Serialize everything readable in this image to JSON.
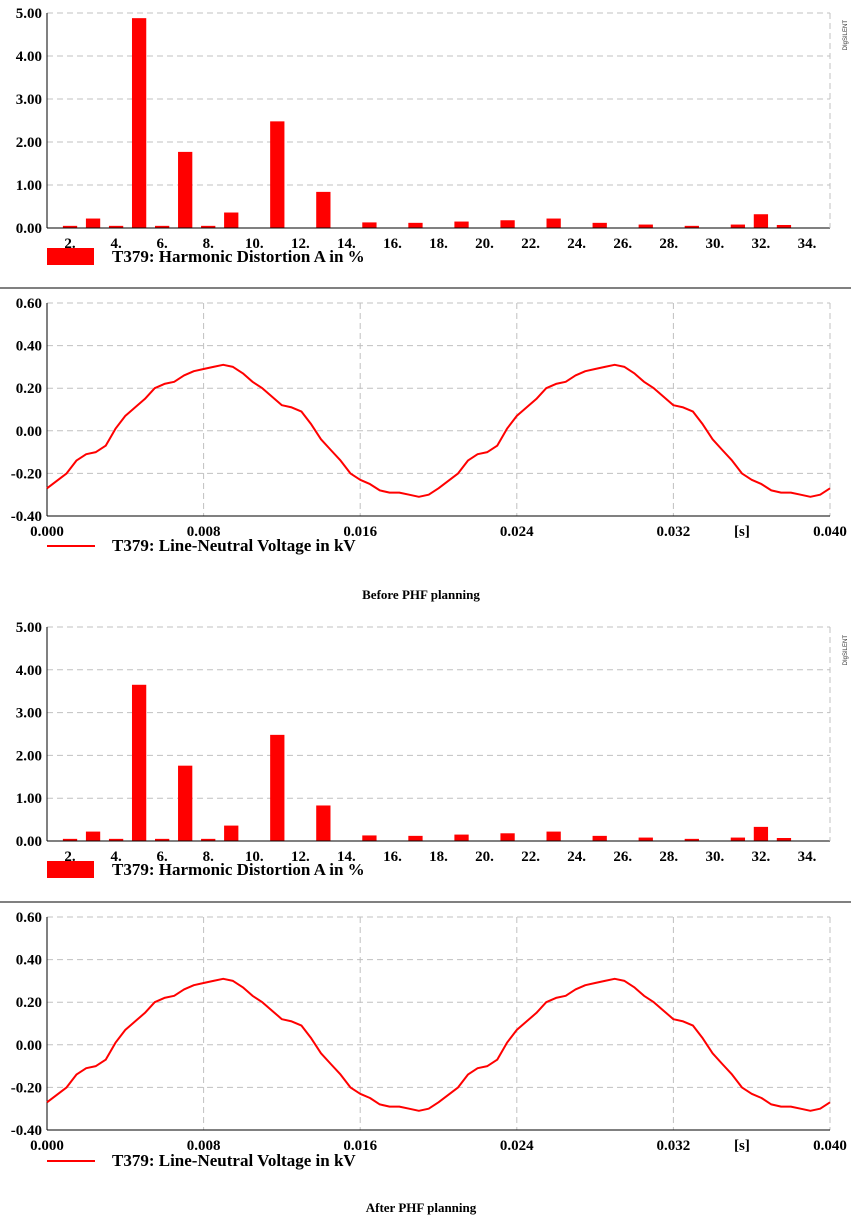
{
  "panels": [
    {
      "caption": "Before PHF planning",
      "watermark": "DIgSILENT",
      "bar_chart": {
        "type": "bar",
        "legend": "T379: Harmonic Distortion A in %",
        "color": "#ff0000",
        "ylim": [
          0,
          5
        ],
        "yticks": [
          "0.00",
          "1.00",
          "2.00",
          "3.00",
          "4.00",
          "5.00"
        ],
        "xticks": [
          "2.",
          "4.",
          "6.",
          "8.",
          "10.",
          "12.",
          "14.",
          "16.",
          "18.",
          "20.",
          "22.",
          "24.",
          "26.",
          "28.",
          "30.",
          "32.",
          "34."
        ],
        "categories": [
          2,
          3,
          4,
          5,
          6,
          7,
          8,
          9,
          10,
          11,
          12,
          13,
          14,
          15,
          16,
          17,
          18,
          19,
          20,
          21,
          22,
          23,
          24,
          25,
          26,
          27,
          28,
          29,
          30,
          31,
          32,
          33,
          34
        ],
        "values": [
          0.05,
          0.22,
          0.05,
          4.88,
          0.05,
          1.77,
          0.05,
          0.36,
          0,
          2.48,
          0,
          0.84,
          0,
          0.13,
          0,
          0.12,
          0,
          0.15,
          0,
          0.18,
          0,
          0.22,
          0,
          0.12,
          0,
          0.08,
          0,
          0.05,
          0,
          0.08,
          0.32,
          0.07,
          0
        ],
        "grid": true
      },
      "line_chart": {
        "type": "line",
        "legend": "T379: Line-Neutral Voltage in kV",
        "color": "#ff0000",
        "xlim": [
          0,
          0.04
        ],
        "ylim": [
          -0.4,
          0.6
        ],
        "xticks": [
          "0.000",
          "0.008",
          "0.016",
          "0.024",
          "0.032",
          "[s]",
          "0.040"
        ],
        "yticks": [
          "-0.40",
          "-0.20",
          "0.00",
          "0.20",
          "0.40",
          "0.60"
        ],
        "x": [
          0,
          0.001,
          0.0015,
          0.002,
          0.0025,
          0.003,
          0.0035,
          0.004,
          0.0045,
          0.005,
          0.0055,
          0.006,
          0.0065,
          0.007,
          0.0075,
          0.008,
          0.0085,
          0.009,
          0.0095,
          0.01,
          0.0105,
          0.011,
          0.0115,
          0.012,
          0.0125,
          0.013,
          0.0135,
          0.014,
          0.0145,
          0.015,
          0.0155,
          0.016,
          0.0165,
          0.017,
          0.0175,
          0.018,
          0.0185,
          0.019,
          0.0195,
          0.02
        ],
        "y": [
          -0.27,
          -0.2,
          -0.14,
          -0.11,
          -0.1,
          -0.07,
          0.01,
          0.07,
          0.11,
          0.15,
          0.2,
          0.22,
          0.23,
          0.26,
          0.28,
          0.29,
          0.3,
          0.31,
          0.3,
          0.27,
          0.23,
          0.2,
          0.16,
          0.12,
          0.11,
          0.09,
          0.03,
          -0.04,
          -0.09,
          -0.14,
          -0.2,
          -0.23,
          -0.25,
          -0.28,
          -0.29,
          -0.29,
          -0.3,
          -0.31,
          -0.3,
          -0.27
        ],
        "period": 0.02,
        "grid": true
      }
    },
    {
      "caption": "After PHF planning",
      "watermark": "DIgSILENT",
      "bar_chart": {
        "type": "bar",
        "legend": "T379: Harmonic Distortion A in %",
        "color": "#ff0000",
        "ylim": [
          0,
          5
        ],
        "yticks": [
          "0.00",
          "1.00",
          "2.00",
          "3.00",
          "4.00",
          "5.00"
        ],
        "xticks": [
          "2.",
          "4.",
          "6.",
          "8.",
          "10.",
          "12.",
          "14.",
          "16.",
          "18.",
          "20.",
          "22.",
          "24.",
          "26.",
          "28.",
          "30.",
          "32.",
          "34."
        ],
        "categories": [
          2,
          3,
          4,
          5,
          6,
          7,
          8,
          9,
          10,
          11,
          12,
          13,
          14,
          15,
          16,
          17,
          18,
          19,
          20,
          21,
          22,
          23,
          24,
          25,
          26,
          27,
          28,
          29,
          30,
          31,
          32,
          33,
          34
        ],
        "values": [
          0.05,
          0.22,
          0.05,
          3.65,
          0.05,
          1.76,
          0.05,
          0.36,
          0,
          2.48,
          0,
          0.83,
          0,
          0.13,
          0,
          0.12,
          0,
          0.15,
          0,
          0.18,
          0,
          0.22,
          0,
          0.12,
          0,
          0.08,
          0,
          0.05,
          0,
          0.08,
          0.33,
          0.07,
          0
        ],
        "grid": true
      },
      "line_chart": {
        "type": "line",
        "legend": "T379: Line-Neutral Voltage in kV",
        "color": "#ff0000",
        "xlim": [
          0,
          0.04
        ],
        "ylim": [
          -0.4,
          0.6
        ],
        "xticks": [
          "0.000",
          "0.008",
          "0.016",
          "0.024",
          "0.032",
          "[s]",
          "0.040"
        ],
        "yticks": [
          "-0.40",
          "-0.20",
          "0.00",
          "0.20",
          "0.40",
          "0.60"
        ],
        "x": [
          0,
          0.001,
          0.0015,
          0.002,
          0.0025,
          0.003,
          0.0035,
          0.004,
          0.0045,
          0.005,
          0.0055,
          0.006,
          0.0065,
          0.007,
          0.0075,
          0.008,
          0.0085,
          0.009,
          0.0095,
          0.01,
          0.0105,
          0.011,
          0.0115,
          0.012,
          0.0125,
          0.013,
          0.0135,
          0.014,
          0.0145,
          0.015,
          0.0155,
          0.016,
          0.0165,
          0.017,
          0.0175,
          0.018,
          0.0185,
          0.019,
          0.0195,
          0.02
        ],
        "y": [
          -0.27,
          -0.2,
          -0.14,
          -0.11,
          -0.1,
          -0.07,
          0.01,
          0.07,
          0.11,
          0.15,
          0.2,
          0.22,
          0.23,
          0.26,
          0.28,
          0.29,
          0.3,
          0.31,
          0.3,
          0.27,
          0.23,
          0.2,
          0.16,
          0.12,
          0.11,
          0.09,
          0.03,
          -0.04,
          -0.09,
          -0.14,
          -0.2,
          -0.23,
          -0.25,
          -0.28,
          -0.29,
          -0.29,
          -0.3,
          -0.31,
          -0.3,
          -0.27
        ],
        "period": 0.02,
        "grid": true
      }
    }
  ]
}
